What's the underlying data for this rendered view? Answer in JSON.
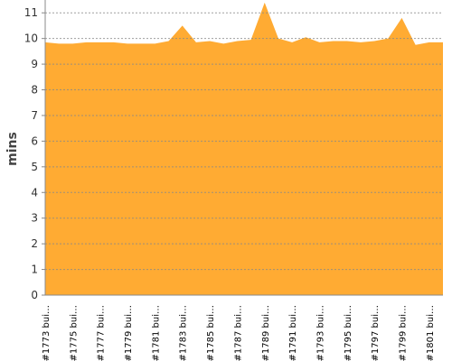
{
  "chart_data": {
    "type": "area",
    "y_label": "mins",
    "color": "#ffab33",
    "categories": [
      "#1773 bui…",
      null,
      "#1775 bui…",
      null,
      "#1777 bui…",
      null,
      "#1779 bui…",
      null,
      "#1781 bui…",
      null,
      "#1783 bui…",
      null,
      "#1785 bui…",
      null,
      "#1787 bui…",
      null,
      "#1789 bui…",
      null,
      "#1791 bui…",
      null,
      "#1793 bui…",
      null,
      "#1795 bui…",
      null,
      "#1797 bui…",
      null,
      "#1799 bui…",
      null,
      "#1801 bui…",
      null
    ],
    "values": [
      9.85,
      9.8,
      9.8,
      9.85,
      9.85,
      9.85,
      9.8,
      9.8,
      9.8,
      9.9,
      10.5,
      9.85,
      9.9,
      9.8,
      9.9,
      9.95,
      11.4,
      10.0,
      9.85,
      10.05,
      9.85,
      9.9,
      9.9,
      9.85,
      9.9,
      10.0,
      10.8,
      9.75,
      9.85,
      9.85
    ],
    "ylim": [
      0,
      11.5
    ],
    "yticks": [
      0,
      1,
      2,
      3,
      4,
      5,
      6,
      7,
      8,
      9,
      10,
      11
    ],
    "grid": true
  }
}
